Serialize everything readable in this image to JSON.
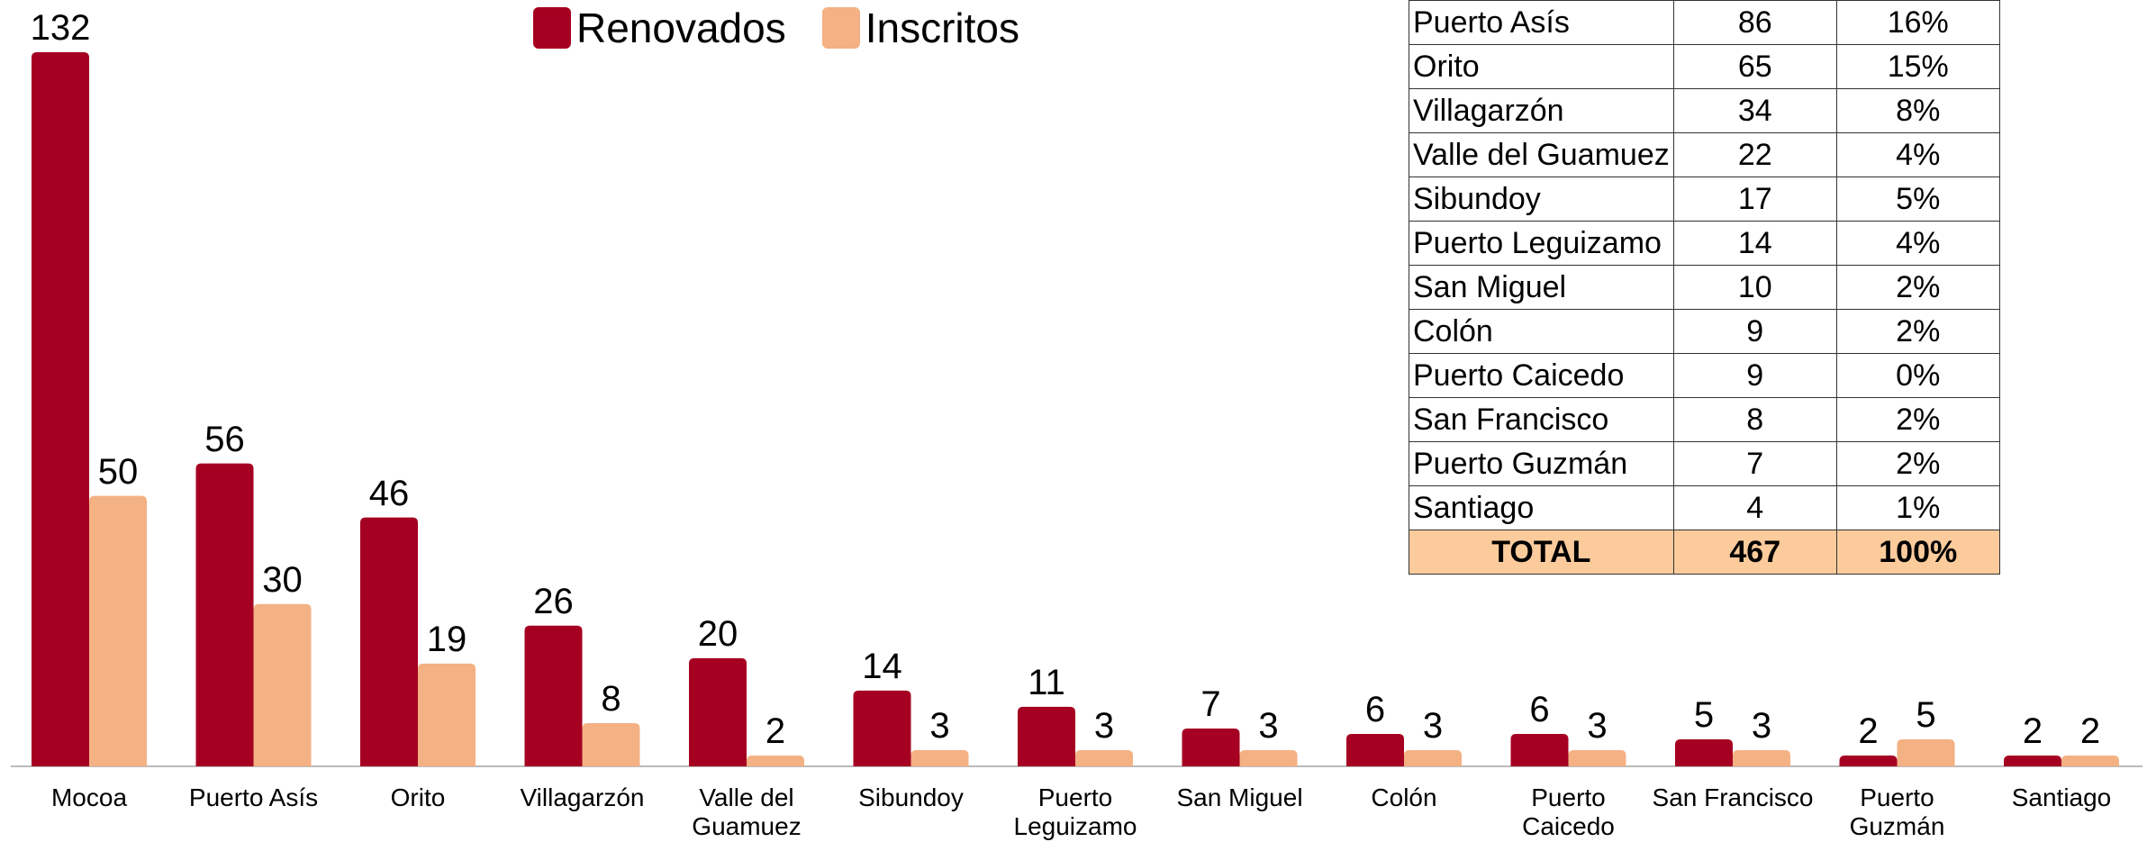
{
  "chart_data": {
    "type": "bar",
    "categories": [
      "Mocoa",
      "Puerto Asís",
      "Orito",
      "Villagarzón",
      "Valle del Guamuez",
      "Sibundoy",
      "Puerto Leguizamo",
      "San Miguel",
      "Colón",
      "Puerto Caicedo",
      "San Francisco",
      "Puerto Guzmán",
      "Santiago"
    ],
    "series": [
      {
        "name": "Renovados",
        "color": "#a50021",
        "values": [
          132,
          56,
          46,
          26,
          20,
          14,
          11,
          7,
          6,
          6,
          5,
          2,
          2
        ]
      },
      {
        "name": "Inscritos",
        "color": "#f4b183",
        "values": [
          50,
          30,
          19,
          8,
          2,
          3,
          3,
          3,
          3,
          3,
          3,
          5,
          2
        ]
      }
    ],
    "legend": "top"
  },
  "table": {
    "rows": [
      [
        "Puerto Asís",
        86,
        "16%"
      ],
      [
        "Orito",
        65,
        "15%"
      ],
      [
        "Villagarzón",
        34,
        "8%"
      ],
      [
        "Valle del Guamuez",
        22,
        "4%"
      ],
      [
        "Sibundoy",
        17,
        "5%"
      ],
      [
        "Puerto Leguizamo",
        14,
        "4%"
      ],
      [
        "San Miguel",
        10,
        "2%"
      ],
      [
        "Colón",
        9,
        "2%"
      ],
      [
        "Puerto Caicedo",
        9,
        "0%"
      ],
      [
        "San Francisco",
        8,
        "2%"
      ],
      [
        "Puerto Guzmán",
        7,
        "2%"
      ],
      [
        "Santiago",
        4,
        "1%"
      ]
    ],
    "total": [
      "TOTAL",
      467,
      "100%"
    ]
  }
}
